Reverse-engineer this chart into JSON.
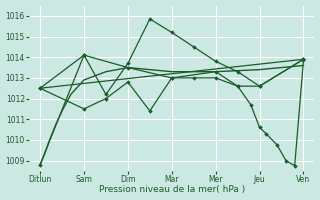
{
  "xlabel": "Pression niveau de la mer( hPa )",
  "background_color": "#cce8e2",
  "grid_color": "#b0d8d0",
  "line_color": "#1a5c2a",
  "ylim": [
    1008.5,
    1016.5
  ],
  "xtick_labels": [
    "Ditlun",
    "Sam",
    "Dim",
    "Mar",
    "Mer",
    "Jeu",
    "Ven"
  ],
  "ytick_values": [
    1009,
    1010,
    1011,
    1012,
    1013,
    1014,
    1015,
    1016
  ],
  "line1": {
    "x": [
      0,
      0.1,
      0.2,
      0.35,
      0.5,
      0.7,
      1.0,
      1.5,
      2.0,
      3.0,
      4.0,
      5.0,
      6.0
    ],
    "y": [
      1008.8,
      1009.3,
      1009.9,
      1010.7,
      1011.4,
      1012.2,
      1012.9,
      1013.3,
      1013.5,
      1013.3,
      1013.3,
      1013.4,
      1013.6
    ]
  },
  "line2": {
    "x": [
      0,
      6
    ],
    "y": [
      1012.5,
      1013.9
    ]
  },
  "line3": {
    "x": [
      0,
      1,
      1.5,
      2,
      2.5,
      3,
      3.5,
      4,
      4.5,
      5,
      6
    ],
    "y": [
      1012.5,
      1014.1,
      1012.2,
      1013.7,
      1015.85,
      1015.2,
      1014.5,
      1013.8,
      1013.3,
      1012.6,
      1013.9
    ]
  },
  "line4": {
    "x": [
      0,
      1,
      1.5,
      2,
      2.5,
      3,
      3.5,
      4,
      4.5,
      5,
      6
    ],
    "y": [
      1012.5,
      1011.5,
      1012.0,
      1012.8,
      1011.4,
      1013.0,
      1013.0,
      1013.0,
      1012.6,
      1012.6,
      1013.9
    ]
  },
  "line5": {
    "x": [
      0,
      1,
      2,
      3,
      4,
      4.5,
      4.8,
      5.0,
      5.15,
      5.4,
      5.6,
      5.8,
      6.0
    ],
    "y": [
      1008.8,
      1014.1,
      1013.5,
      1013.0,
      1013.3,
      1012.6,
      1011.7,
      1010.6,
      1010.3,
      1009.75,
      1009.0,
      1008.75,
      1013.85
    ]
  }
}
